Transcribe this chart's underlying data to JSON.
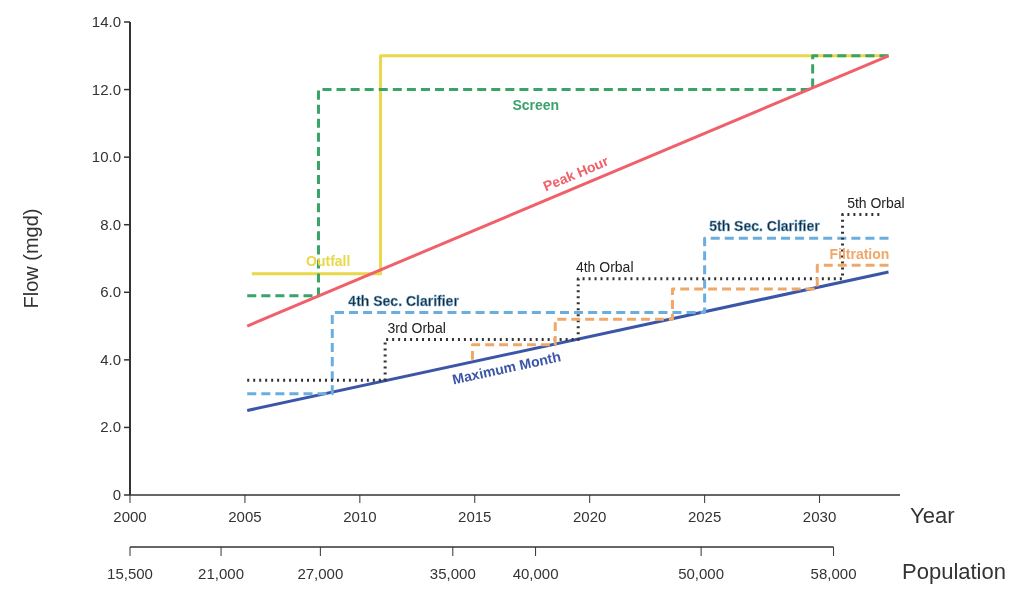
{
  "chart_data": {
    "type": "line",
    "ylabel": "Flow (mgd)",
    "xlabel": "Year",
    "x2label": "Population",
    "xlim": [
      2000,
      2033.5
    ],
    "xticks": [
      2000,
      2005,
      2010,
      2015,
      2020,
      2025,
      2030
    ],
    "x2lim": [
      15500,
      58000
    ],
    "x2ticks": [
      {
        "value": 15500,
        "label": "15,500"
      },
      {
        "value": 21000,
        "label": "21,000"
      },
      {
        "value": 27000,
        "label": "27,000"
      },
      {
        "value": 35000,
        "label": "35,000"
      },
      {
        "value": 40000,
        "label": "40,000"
      },
      {
        "value": 50000,
        "label": "50,000"
      },
      {
        "value": 58000,
        "label": "58,000"
      }
    ],
    "ylim": [
      0,
      14
    ],
    "yticks": [
      0,
      {
        "value": 2,
        "label": "2.0"
      },
      {
        "value": 4,
        "label": "4.0"
      },
      {
        "value": 6,
        "label": "6.0"
      },
      {
        "value": 8,
        "label": "8.0"
      },
      {
        "value": 10,
        "label": "10.0"
      },
      {
        "value": 12,
        "label": "12.0"
      },
      {
        "value": 14,
        "label": "14.0"
      }
    ],
    "grid": false,
    "series": [
      {
        "name": "Outfall",
        "color": "#e8d84a",
        "line_style": "solid",
        "x": [
          2005.3,
          2010.9,
          2010.9,
          2033.0
        ],
        "values": [
          6.55,
          6.55,
          13.0,
          13.0
        ]
      },
      {
        "name": "Screen",
        "color": "#3aa36a",
        "line_style": "dashed",
        "x": [
          2005.1,
          2008.2,
          2008.2,
          2029.7,
          2029.7,
          2033.0
        ],
        "values": [
          5.9,
          5.9,
          12.0,
          12.0,
          13.0,
          13.0
        ]
      },
      {
        "name": "Peak Hour",
        "color": "#f0606a",
        "line_style": "solid",
        "x": [
          2005.1,
          2033.0
        ],
        "values": [
          5.0,
          13.0
        ]
      },
      {
        "name": "Maximum Month",
        "color": "#3b55a8",
        "line_style": "solid",
        "x": [
          2005.1,
          2033.0
        ],
        "values": [
          2.5,
          6.6
        ]
      },
      {
        "color": "#6aaee0",
        "line_style": "dashed",
        "x": [
          2005.1,
          2008.8,
          2008.8,
          2025.0,
          2025.0,
          2033.0
        ],
        "values": [
          3.0,
          3.0,
          5.4,
          5.4,
          7.6,
          7.6
        ]
      },
      {
        "color": "#333333",
        "line_style": "dotted",
        "x": [
          2005.1,
          2011.1,
          2011.1,
          2019.5,
          2019.5,
          2031.0,
          2031.0,
          2032.6
        ],
        "values": [
          3.4,
          3.4,
          4.6,
          4.6,
          6.4,
          6.4,
          8.3,
          8.3
        ]
      },
      {
        "name": "Filtration",
        "color": "#f0a868",
        "line_style": "dashed",
        "x": [
          2014.9,
          2014.9,
          2018.5,
          2018.5,
          2023.6,
          2023.6,
          2029.9,
          2029.9,
          2033.0
        ],
        "values": [
          4.0,
          4.45,
          4.45,
          5.2,
          5.2,
          6.1,
          6.1,
          6.8,
          6.8
        ]
      }
    ],
    "annotations": [
      {
        "text": "4th Sec. Clarifier",
        "x": 2009.5,
        "y": 5.4
      },
      {
        "text": "5th Sec. Clarifier",
        "x": 2025.2,
        "y": 7.6
      },
      {
        "text": "3rd Orbal",
        "x": 2011.2,
        "y": 4.6
      },
      {
        "text": "4th Orbal",
        "x": 2019.4,
        "y": 6.4
      },
      {
        "text": "5th Orbal",
        "x": 2031.2,
        "y": 8.3
      }
    ]
  }
}
